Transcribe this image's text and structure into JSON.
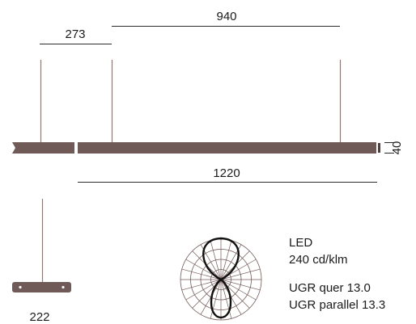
{
  "dimensions": {
    "top_span": "940",
    "left_offset": "273",
    "total_length": "1220",
    "profile_height": "40",
    "canopy_width": "222"
  },
  "specs": {
    "source": "LED",
    "intensity": "240 cd/klm",
    "ugr_cross": "UGR quer 13.0",
    "ugr_parallel": "UGR parallel 13.3"
  },
  "colors": {
    "luminaire": "#705a57",
    "suspension": "#8a7a78",
    "dimension_line": "#2b2b2b",
    "polar_grid": "#705a57",
    "polar_curve": "#111111"
  }
}
